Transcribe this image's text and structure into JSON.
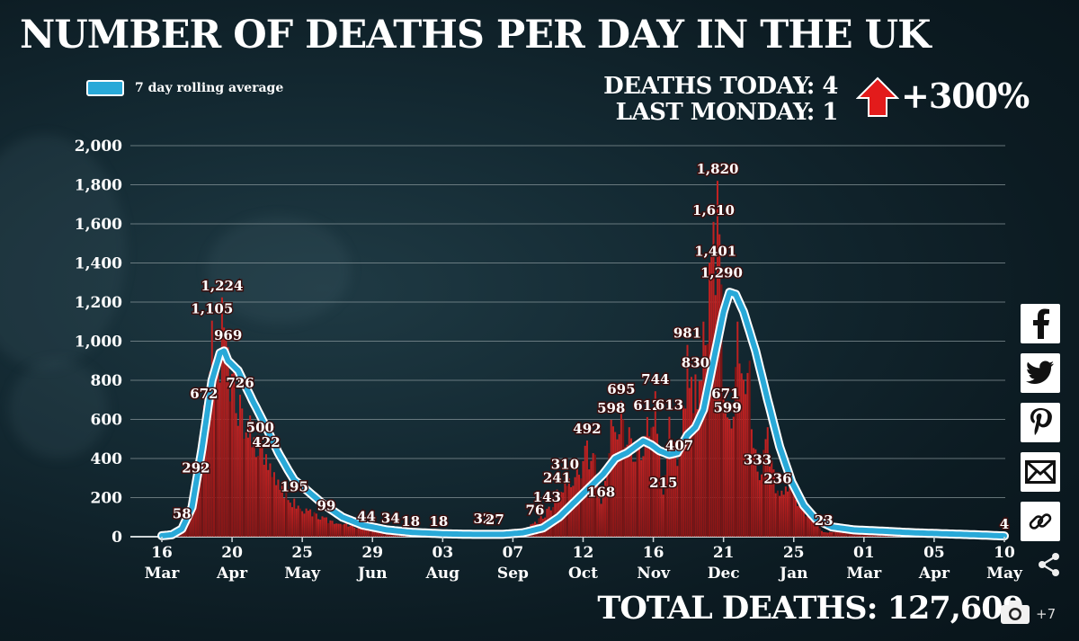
{
  "title": "NUMBER OF DEATHS PER DAY IN THE UK",
  "legend_label": "7 day rolling average",
  "stats": {
    "deaths_today": "DEATHS TODAY: 4",
    "last_monday": "LAST MONDAY: 1",
    "change": "+300%"
  },
  "total_deaths": "TOTAL DEATHS: 127,609",
  "share_more_count": "+7",
  "icons": [
    "facebook-icon",
    "twitter-icon",
    "pinterest-icon",
    "email-icon",
    "link-icon",
    "share-icon",
    "camera-icon",
    "up-arrow-icon"
  ],
  "colors": {
    "bar": "#b01c1c",
    "bar_dark": "#7d1414",
    "line": "#29a9d8",
    "line_outline": "#ffffff",
    "arrow": "#e31b1b"
  },
  "chart_data": {
    "type": "bar",
    "title": "NUMBER OF DEATHS PER DAY IN THE UK",
    "ylim": [
      0,
      2000
    ],
    "yticks": [
      0,
      200,
      400,
      600,
      800,
      1000,
      1200,
      1400,
      1600,
      1800,
      2000
    ],
    "ytick_labels": [
      "0",
      "200",
      "400",
      "600",
      "800",
      "1,000",
      "1,200",
      "1,400",
      "1,600",
      "1,800",
      "2,000"
    ],
    "xticks": [
      {
        "day": 0,
        "top": "16",
        "bottom": "Mar"
      },
      {
        "day": 35,
        "top": "20",
        "bottom": "Apr"
      },
      {
        "day": 70,
        "top": "25",
        "bottom": "May"
      },
      {
        "day": 105,
        "top": "29",
        "bottom": "Jun"
      },
      {
        "day": 140,
        "top": "03",
        "bottom": "Aug"
      },
      {
        "day": 175,
        "top": "07",
        "bottom": "Sep"
      },
      {
        "day": 210,
        "top": "12",
        "bottom": "Oct"
      },
      {
        "day": 245,
        "top": "16",
        "bottom": "Nov"
      },
      {
        "day": 280,
        "top": "21",
        "bottom": "Dec"
      },
      {
        "day": 315,
        "top": "25",
        "bottom": "Jan"
      },
      {
        "day": 350,
        "top": "01",
        "bottom": "Mar"
      },
      {
        "day": 385,
        "top": "05",
        "bottom": "Apr"
      },
      {
        "day": 420,
        "top": "10",
        "bottom": "May"
      }
    ],
    "grid": true,
    "legend": "top-left",
    "daily_deaths_anchors": [
      [
        0,
        5
      ],
      [
        5,
        25
      ],
      [
        10,
        58
      ],
      [
        14,
        160
      ],
      [
        17,
        292
      ],
      [
        21,
        672
      ],
      [
        25,
        1105
      ],
      [
        28,
        900
      ],
      [
        30,
        1224
      ],
      [
        33,
        969
      ],
      [
        36,
        860
      ],
      [
        39,
        726
      ],
      [
        44,
        620
      ],
      [
        49,
        500
      ],
      [
        52,
        422
      ],
      [
        56,
        330
      ],
      [
        60,
        260
      ],
      [
        66,
        195
      ],
      [
        74,
        140
      ],
      [
        82,
        99
      ],
      [
        92,
        70
      ],
      [
        102,
        44
      ],
      [
        114,
        34
      ],
      [
        124,
        18
      ],
      [
        138,
        18
      ],
      [
        150,
        15
      ],
      [
        160,
        32
      ],
      [
        166,
        27
      ],
      [
        178,
        40
      ],
      [
        186,
        76
      ],
      [
        192,
        143
      ],
      [
        197,
        241
      ],
      [
        201,
        310
      ],
      [
        207,
        360
      ],
      [
        212,
        492
      ],
      [
        216,
        420
      ],
      [
        219,
        168
      ],
      [
        224,
        598
      ],
      [
        229,
        695
      ],
      [
        233,
        560
      ],
      [
        237,
        480
      ],
      [
        242,
        612
      ],
      [
        246,
        744
      ],
      [
        250,
        215
      ],
      [
        253,
        613
      ],
      [
        258,
        407
      ],
      [
        262,
        981
      ],
      [
        266,
        830
      ],
      [
        270,
        1100
      ],
      [
        273,
        1401
      ],
      [
        275,
        1610
      ],
      [
        277,
        1820
      ],
      [
        279,
        1290
      ],
      [
        281,
        671
      ],
      [
        283,
        599
      ],
      [
        287,
        1100
      ],
      [
        293,
        900
      ],
      [
        297,
        333
      ],
      [
        302,
        560
      ],
      [
        307,
        236
      ],
      [
        313,
        330
      ],
      [
        318,
        180
      ],
      [
        324,
        110
      ],
      [
        330,
        23
      ],
      [
        340,
        40
      ],
      [
        360,
        30
      ],
      [
        380,
        25
      ],
      [
        390,
        8
      ],
      [
        400,
        20
      ],
      [
        420,
        4
      ]
    ],
    "rolling_avg_anchors": [
      [
        0,
        5
      ],
      [
        5,
        10
      ],
      [
        10,
        40
      ],
      [
        15,
        150
      ],
      [
        20,
        450
      ],
      [
        25,
        800
      ],
      [
        29,
        940
      ],
      [
        31,
        950
      ],
      [
        33,
        900
      ],
      [
        38,
        850
      ],
      [
        45,
        700
      ],
      [
        52,
        560
      ],
      [
        58,
        430
      ],
      [
        63,
        340
      ],
      [
        66,
        290
      ],
      [
        72,
        240
      ],
      [
        80,
        170
      ],
      [
        90,
        100
      ],
      [
        100,
        60
      ],
      [
        112,
        35
      ],
      [
        125,
        22
      ],
      [
        140,
        15
      ],
      [
        155,
        12
      ],
      [
        170,
        12
      ],
      [
        180,
        20
      ],
      [
        190,
        45
      ],
      [
        198,
        100
      ],
      [
        205,
        170
      ],
      [
        212,
        240
      ],
      [
        220,
        320
      ],
      [
        226,
        400
      ],
      [
        232,
        430
      ],
      [
        236,
        460
      ],
      [
        240,
        490
      ],
      [
        244,
        470
      ],
      [
        248,
        440
      ],
      [
        253,
        420
      ],
      [
        257,
        430
      ],
      [
        262,
        520
      ],
      [
        266,
        560
      ],
      [
        270,
        650
      ],
      [
        275,
        900
      ],
      [
        280,
        1150
      ],
      [
        283,
        1250
      ],
      [
        286,
        1240
      ],
      [
        290,
        1150
      ],
      [
        296,
        950
      ],
      [
        302,
        700
      ],
      [
        308,
        460
      ],
      [
        314,
        280
      ],
      [
        320,
        160
      ],
      [
        326,
        90
      ],
      [
        334,
        50
      ],
      [
        345,
        35
      ],
      [
        360,
        28
      ],
      [
        375,
        20
      ],
      [
        390,
        15
      ],
      [
        405,
        10
      ],
      [
        420,
        4
      ]
    ],
    "data_labels": [
      {
        "day": 10,
        "value": 58,
        "text": "58"
      },
      {
        "day": 17,
        "value": 292,
        "text": "292"
      },
      {
        "day": 21,
        "value": 672,
        "text": "672"
      },
      {
        "day": 25,
        "value": 1105,
        "text": "1,105"
      },
      {
        "day": 30,
        "value": 1224,
        "text": "1,224"
      },
      {
        "day": 33,
        "value": 969,
        "text": "969"
      },
      {
        "day": 39,
        "value": 726,
        "text": "726"
      },
      {
        "day": 49,
        "value": 500,
        "text": "500"
      },
      {
        "day": 52,
        "value": 422,
        "text": "422"
      },
      {
        "day": 66,
        "value": 195,
        "text": "195"
      },
      {
        "day": 82,
        "value": 99,
        "text": "99"
      },
      {
        "day": 102,
        "value": 44,
        "text": "44"
      },
      {
        "day": 114,
        "value": 34,
        "text": "34"
      },
      {
        "day": 124,
        "value": 18,
        "text": "18"
      },
      {
        "day": 138,
        "value": 18,
        "text": "18"
      },
      {
        "day": 160,
        "value": 32,
        "text": "32"
      },
      {
        "day": 166,
        "value": 27,
        "text": "27"
      },
      {
        "day": 186,
        "value": 76,
        "text": "76"
      },
      {
        "day": 192,
        "value": 143,
        "text": "143"
      },
      {
        "day": 197,
        "value": 241,
        "text": "241"
      },
      {
        "day": 201,
        "value": 310,
        "text": "310"
      },
      {
        "day": 212,
        "value": 492,
        "text": "492"
      },
      {
        "day": 219,
        "value": 168,
        "text": "168"
      },
      {
        "day": 224,
        "value": 598,
        "text": "598"
      },
      {
        "day": 229,
        "value": 695,
        "text": "695"
      },
      {
        "day": 242,
        "value": 612,
        "text": "612"
      },
      {
        "day": 246,
        "value": 744,
        "text": "744"
      },
      {
        "day": 250,
        "value": 215,
        "text": "215"
      },
      {
        "day": 253,
        "value": 613,
        "text": "613"
      },
      {
        "day": 258,
        "value": 407,
        "text": "407"
      },
      {
        "day": 262,
        "value": 981,
        "text": "981"
      },
      {
        "day": 266,
        "value": 830,
        "text": "830"
      },
      {
        "day": 277,
        "value": 1820,
        "text": "1,820"
      },
      {
        "day": 275,
        "value": 1610,
        "text": "1,610"
      },
      {
        "day": 276,
        "value": 1401,
        "text": "1,401"
      },
      {
        "day": 279,
        "value": 1290,
        "text": "1,290"
      },
      {
        "day": 281,
        "value": 671,
        "text": "671"
      },
      {
        "day": 282,
        "value": 599,
        "text": "599"
      },
      {
        "day": 297,
        "value": 333,
        "text": "333"
      },
      {
        "day": 307,
        "value": 236,
        "text": "236"
      },
      {
        "day": 330,
        "value": 23,
        "text": "23"
      },
      {
        "day": 420,
        "value": 4,
        "text": "4"
      }
    ]
  }
}
